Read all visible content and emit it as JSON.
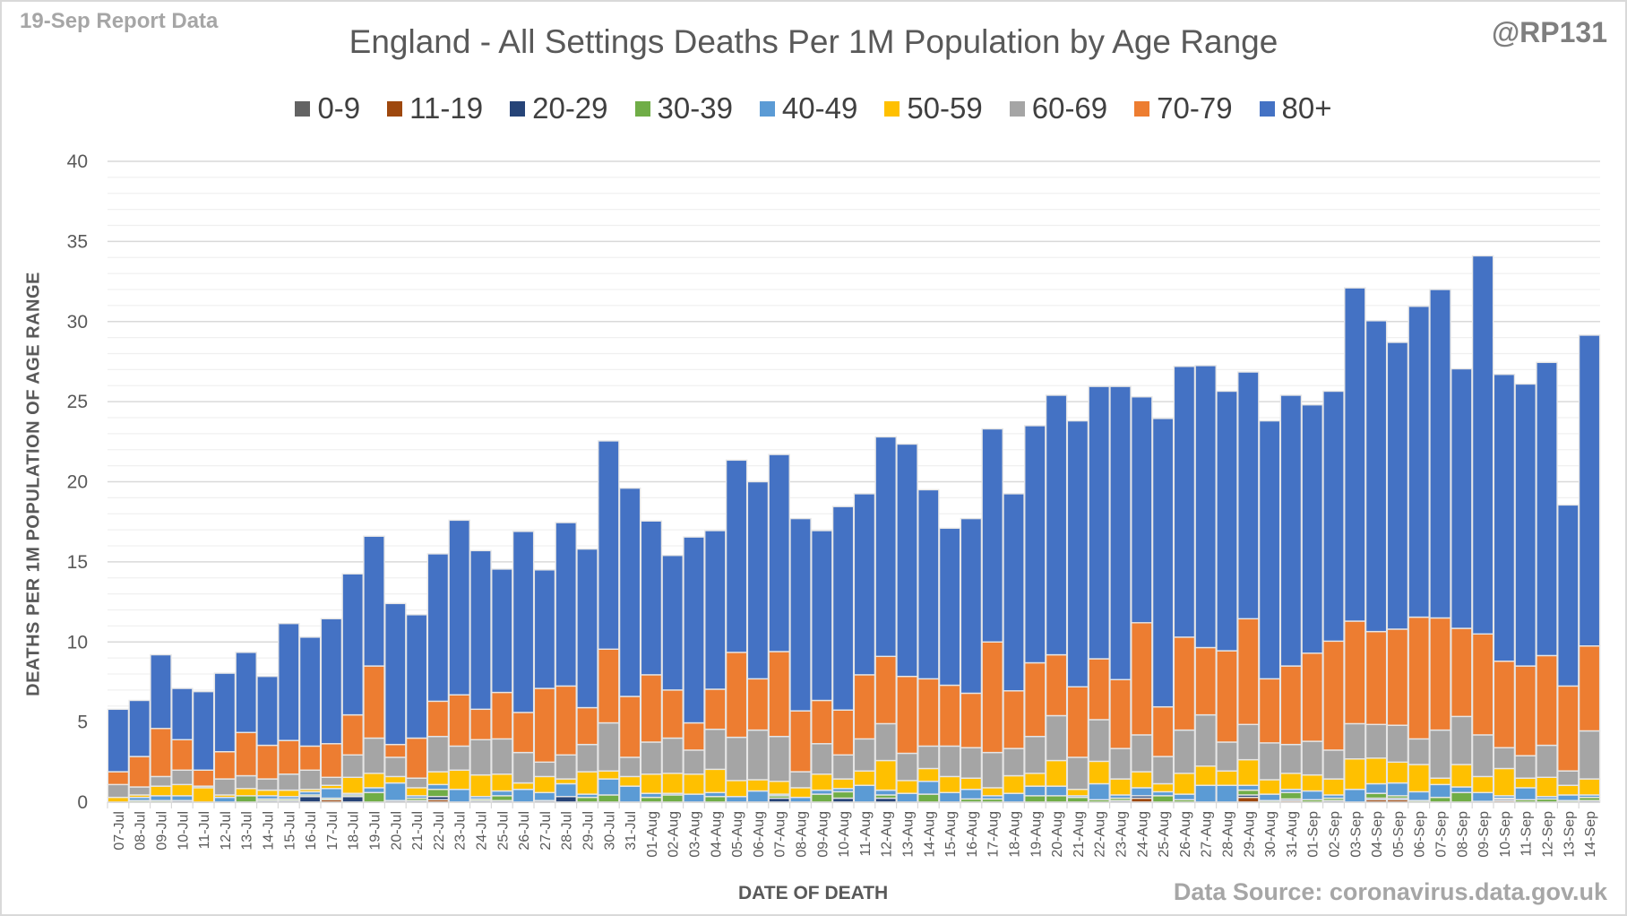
{
  "header": {
    "report_label": "19-Sep Report Data",
    "handle": "@RP131",
    "source": "Data Source: coronavirus.data.gov.uk"
  },
  "chart_data": {
    "type": "bar",
    "stacked": true,
    "title": "England - All Settings Deaths Per 1M Population by Age Range",
    "xlabel": "DATE OF DEATH",
    "ylabel": "DEATHS PER 1M POPULATION OF AGE RANGE",
    "ylim": [
      0,
      40
    ],
    "yticks": [
      0,
      5,
      10,
      15,
      20,
      25,
      30,
      35,
      40
    ],
    "grid": true,
    "legend_position": "top",
    "categories": [
      "07-Jul",
      "08-Jul",
      "09-Jul",
      "10-Jul",
      "11-Jul",
      "12-Jul",
      "13-Jul",
      "14-Jul",
      "15-Jul",
      "16-Jul",
      "17-Jul",
      "18-Jul",
      "19-Jul",
      "20-Jul",
      "21-Jul",
      "22-Jul",
      "23-Jul",
      "24-Jul",
      "25-Jul",
      "26-Jul",
      "27-Jul",
      "28-Jul",
      "29-Jul",
      "30-Jul",
      "31-Jul",
      "01-Aug",
      "02-Aug",
      "03-Aug",
      "04-Aug",
      "05-Aug",
      "06-Aug",
      "07-Aug",
      "08-Aug",
      "09-Aug",
      "10-Aug",
      "11-Aug",
      "12-Aug",
      "13-Aug",
      "14-Aug",
      "15-Aug",
      "16-Aug",
      "17-Aug",
      "18-Aug",
      "19-Aug",
      "20-Aug",
      "21-Aug",
      "22-Aug",
      "23-Aug",
      "24-Aug",
      "25-Aug",
      "26-Aug",
      "27-Aug",
      "28-Aug",
      "29-Aug",
      "30-Aug",
      "31-Aug",
      "01-Sep",
      "02-Sep",
      "03-Sep",
      "04-Sep",
      "05-Sep",
      "06-Sep",
      "07-Sep",
      "08-Sep",
      "09-Sep",
      "10-Sep",
      "11-Sep",
      "12-Sep",
      "13-Sep",
      "14-Sep"
    ],
    "series": [
      {
        "name": "0-9",
        "color": "#636363",
        "values": [
          0,
          0,
          0,
          0,
          0,
          0,
          0,
          0,
          0,
          0,
          0,
          0,
          0,
          0,
          0,
          0,
          0,
          0,
          0,
          0,
          0,
          0,
          0,
          0,
          0,
          0,
          0,
          0,
          0,
          0,
          0,
          0,
          0,
          0,
          0,
          0,
          0,
          0,
          0,
          0,
          0,
          0,
          0,
          0,
          0,
          0,
          0,
          0,
          0,
          0,
          0,
          0,
          0,
          0,
          0,
          0,
          0,
          0,
          0,
          0,
          0,
          0,
          0,
          0,
          0,
          0,
          0,
          0,
          0,
          0
        ]
      },
      {
        "name": "11-19",
        "color": "#9e480e",
        "values": [
          0,
          0,
          0,
          0,
          0,
          0,
          0,
          0,
          0,
          0,
          0.15,
          0,
          0,
          0,
          0,
          0.15,
          0,
          0,
          0,
          0,
          0,
          0,
          0,
          0,
          0,
          0,
          0,
          0,
          0,
          0,
          0,
          0,
          0,
          0,
          0,
          0,
          0,
          0,
          0,
          0,
          0,
          0,
          0,
          0,
          0,
          0,
          0,
          0,
          0.25,
          0,
          0,
          0,
          0,
          0.3,
          0,
          0.1,
          0,
          0,
          0,
          0.15,
          0.15,
          0,
          0,
          0,
          0,
          0.1,
          0,
          0,
          0,
          0
        ]
      },
      {
        "name": "20-29",
        "color": "#264478",
        "values": [
          0,
          0,
          0,
          0.1,
          0,
          0,
          0,
          0.1,
          0.1,
          0.35,
          0,
          0.35,
          0,
          0.1,
          0.1,
          0.2,
          0,
          0.1,
          0.1,
          0,
          0.1,
          0.35,
          0,
          0,
          0,
          0,
          0,
          0,
          0,
          0,
          0,
          0.25,
          0,
          0,
          0.25,
          0,
          0.25,
          0,
          0,
          0,
          0,
          0,
          0,
          0,
          0,
          0,
          0,
          0.1,
          0.15,
          0,
          0,
          0,
          0,
          0.15,
          0,
          0.1,
          0,
          0.1,
          0,
          0.1,
          0.1,
          0,
          0,
          0,
          0,
          0.1,
          0,
          0,
          0,
          0.1
        ]
      },
      {
        "name": "30-39",
        "color": "#70ad47",
        "values": [
          0,
          0.1,
          0.1,
          0,
          0,
          0,
          0.4,
          0.1,
          0.1,
          0.1,
          0.1,
          0.1,
          0.6,
          0,
          0.15,
          0.45,
          0,
          0.1,
          0.3,
          0,
          0,
          0,
          0.3,
          0.45,
          0,
          0.3,
          0.45,
          0,
          0.35,
          0,
          0,
          0.15,
          0,
          0.5,
          0.4,
          0,
          0.2,
          0,
          0.5,
          0,
          0.2,
          0.2,
          0,
          0.4,
          0.4,
          0.3,
          0.15,
          0.15,
          0,
          0.4,
          0.15,
          0,
          0,
          0.3,
          0.1,
          0.4,
          0.15,
          0.15,
          0,
          0.3,
          0.15,
          0.1,
          0.3,
          0.6,
          0.05,
          0.05,
          0.15,
          0.2,
          0.1,
          0.2
        ]
      },
      {
        "name": "40-49",
        "color": "#5b9bd5",
        "values": [
          0,
          0.2,
          0.3,
          0.3,
          0,
          0.3,
          0,
          0.2,
          0.15,
          0.2,
          0.6,
          0.1,
          0.3,
          1.1,
          0.15,
          0.3,
          0.8,
          0.15,
          0.3,
          0.8,
          0.5,
          0.8,
          0.2,
          1.0,
          1.0,
          0.25,
          0.1,
          0.5,
          0.25,
          0.35,
          0.7,
          0.1,
          0.3,
          0.25,
          0.2,
          1.05,
          0.3,
          0.55,
          0.8,
          0.6,
          0.6,
          0.2,
          0.55,
          0.6,
          0.6,
          0.1,
          1.0,
          0.2,
          0.5,
          0.25,
          0.35,
          1.05,
          1.05,
          0.3,
          0.4,
          0.2,
          0.55,
          0.2,
          0.8,
          0.6,
          0.8,
          0.55,
          0.8,
          0.35,
          0.55,
          0.15,
          0.75,
          0.15,
          0.35,
          0.15
        ]
      },
      {
        "name": "50-59",
        "color": "#ffc000",
        "values": [
          0.3,
          0.15,
          0.6,
          0.7,
          0.9,
          0.15,
          0.45,
          0.35,
          0.4,
          0.15,
          0.2,
          1.0,
          0.9,
          0.4,
          0.5,
          0.8,
          1.2,
          1.35,
          1.05,
          0.4,
          1.0,
          0.3,
          1.4,
          0.5,
          0.6,
          1.2,
          1.25,
          1.25,
          1.45,
          1.0,
          0.7,
          0.8,
          0.6,
          1.0,
          0.6,
          0.9,
          1.85,
          0.8,
          0.8,
          1.0,
          0.7,
          0.5,
          1.1,
          0.8,
          1.6,
          0.4,
          1.4,
          1.0,
          1.0,
          0.5,
          1.3,
          1.2,
          0.9,
          1.6,
          0.9,
          1.0,
          1.0,
          1.0,
          1.9,
          1.6,
          1.3,
          1.7,
          0.4,
          1.4,
          1.0,
          1.7,
          0.6,
          1.2,
          0.6,
          1.0
        ]
      },
      {
        "name": "60-69",
        "color": "#a5a5a5",
        "values": [
          0.8,
          0.5,
          0.6,
          0.9,
          0.1,
          1.0,
          0.8,
          0.7,
          1.0,
          1.2,
          0.5,
          1.4,
          2.2,
          1.2,
          0.6,
          2.2,
          1.5,
          2.2,
          2.2,
          1.9,
          0.9,
          1.5,
          1.7,
          3.0,
          1.2,
          2.0,
          2.2,
          1.5,
          2.5,
          2.7,
          3.1,
          2.8,
          1.0,
          1.9,
          1.5,
          2.0,
          2.3,
          1.7,
          1.4,
          1.9,
          1.9,
          2.2,
          1.7,
          2.3,
          2.8,
          2.0,
          2.6,
          1.9,
          2.3,
          1.7,
          2.7,
          3.2,
          1.8,
          2.2,
          2.3,
          1.8,
          2.1,
          1.8,
          2.2,
          2.1,
          2.3,
          1.6,
          3.0,
          3.0,
          2.6,
          1.3,
          1.4,
          2.0,
          0.9,
          3.0
        ]
      },
      {
        "name": "70-79",
        "color": "#ed7d31",
        "values": [
          0.8,
          1.9,
          3.0,
          1.9,
          1.0,
          1.7,
          2.7,
          2.1,
          2.1,
          1.5,
          2.1,
          2.5,
          4.5,
          0.8,
          2.5,
          2.2,
          3.2,
          1.9,
          2.9,
          2.5,
          4.6,
          4.3,
          2.3,
          4.6,
          3.8,
          4.2,
          3.0,
          1.7,
          2.5,
          5.3,
          3.2,
          5.3,
          3.8,
          2.7,
          2.8,
          4.0,
          4.2,
          4.8,
          4.2,
          3.8,
          3.4,
          6.9,
          3.6,
          4.6,
          3.8,
          4.4,
          3.8,
          4.3,
          7.0,
          3.1,
          5.8,
          4.2,
          5.7,
          6.6,
          4.0,
          4.9,
          5.5,
          6.8,
          6.4,
          5.8,
          6.0,
          7.6,
          7.0,
          5.5,
          6.3,
          5.4,
          5.6,
          5.6,
          5.3,
          5.3
        ]
      },
      {
        "name": "80+",
        "color": "#4472c4",
        "values": [
          3.9,
          3.5,
          4.6,
          3.2,
          4.9,
          4.9,
          5.0,
          4.3,
          7.3,
          6.8,
          7.8,
          8.8,
          8.1,
          8.8,
          7.7,
          9.2,
          10.9,
          9.9,
          7.7,
          11.3,
          7.4,
          10.2,
          9.9,
          13.0,
          13.0,
          9.6,
          8.4,
          11.6,
          9.9,
          12.0,
          12.3,
          12.3,
          12.0,
          10.6,
          12.7,
          11.3,
          13.7,
          14.5,
          11.8,
          9.8,
          10.9,
          13.3,
          12.3,
          14.8,
          16.2,
          16.6,
          17.0,
          18.3,
          14.1,
          18.0,
          16.9,
          17.6,
          16.2,
          15.4,
          16.1,
          16.9,
          15.5,
          15.6,
          20.8,
          19.4,
          17.9,
          19.4,
          20.5,
          16.2,
          23.6,
          17.9,
          17.6,
          18.3,
          11.3,
          19.4
        ]
      }
    ]
  }
}
